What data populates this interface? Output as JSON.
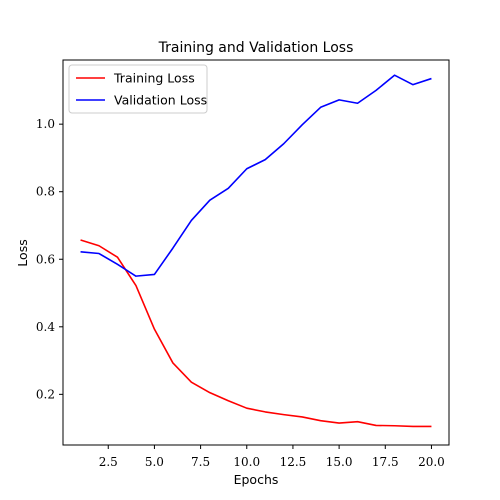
{
  "chart_data": {
    "type": "line",
    "title": "Training and Validation Loss",
    "xlabel": "Epochs",
    "ylabel": "Loss",
    "xlim": [
      0.05,
      20.95
    ],
    "ylim": [
      0.05,
      1.19
    ],
    "xticks": [
      2.5,
      5.0,
      7.5,
      10.0,
      12.5,
      15.0,
      17.5,
      20.0
    ],
    "xtick_labels": [
      "2.5",
      "5.0",
      "7.5",
      "10.0",
      "12.5",
      "15.0",
      "17.5",
      "20.0"
    ],
    "yticks": [
      0.2,
      0.4,
      0.6,
      0.8,
      1.0
    ],
    "ytick_labels": [
      "0.2",
      "0.4",
      "0.6",
      "0.8",
      "1.0"
    ],
    "grid": false,
    "legend_position": "top-left",
    "x": [
      1,
      2,
      3,
      4,
      5,
      6,
      7,
      8,
      9,
      10,
      11,
      12,
      13,
      14,
      15,
      16,
      17,
      18,
      19,
      20
    ],
    "series": [
      {
        "name": "Training Loss",
        "color": "#ff0000",
        "values": [
          0.657,
          0.64,
          0.606,
          0.522,
          0.393,
          0.293,
          0.236,
          0.205,
          0.181,
          0.159,
          0.148,
          0.14,
          0.133,
          0.122,
          0.115,
          0.119,
          0.108,
          0.107,
          0.105,
          0.105
        ]
      },
      {
        "name": "Validation Loss",
        "color": "#0000ff",
        "values": [
          0.622,
          0.617,
          0.585,
          0.55,
          0.555,
          0.633,
          0.715,
          0.775,
          0.81,
          0.868,
          0.895,
          0.942,
          0.998,
          1.05,
          1.072,
          1.062,
          1.1,
          1.145,
          1.117,
          1.135
        ]
      }
    ]
  }
}
